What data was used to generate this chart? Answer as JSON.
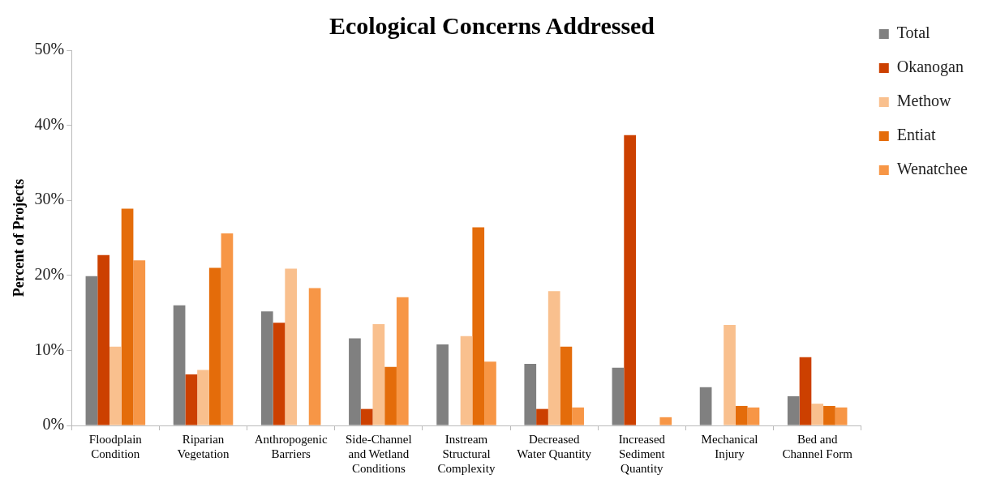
{
  "chart_data": {
    "type": "bar",
    "title": "Ecological Concerns Addressed",
    "ylabel": "Percent of Projects",
    "categories": [
      "Floodplain Condition",
      "Riparian Vegetation",
      "Anthropogenic Barriers",
      "Side-Channel and Wetland Conditions",
      "Instream Structural Complexity",
      "Decreased Water Quantity",
      "Increased Sediment Quantity",
      "Mechanical Injury",
      "Bed and Channel Form"
    ],
    "series": [
      {
        "name": "Total",
        "color": "#808080",
        "values": [
          19.9,
          16.0,
          15.2,
          11.6,
          10.8,
          8.2,
          7.7,
          5.1,
          3.9
        ]
      },
      {
        "name": "Okanogan",
        "color": "#cc4000",
        "values": [
          22.7,
          6.8,
          13.7,
          2.2,
          0,
          2.2,
          38.7,
          0,
          9.1
        ]
      },
      {
        "name": "Methow",
        "color": "#f9c08e",
        "values": [
          10.5,
          7.4,
          20.9,
          13.5,
          11.9,
          17.9,
          0,
          13.4,
          2.9
        ]
      },
      {
        "name": "Entiat",
        "color": "#e46c0a",
        "values": [
          28.9,
          21.0,
          0,
          7.8,
          26.4,
          10.5,
          0,
          2.6,
          2.6
        ]
      },
      {
        "name": "Wenatchee",
        "color": "#f79646",
        "values": [
          22.0,
          25.6,
          18.3,
          17.1,
          8.5,
          2.4,
          1.1,
          2.4,
          2.4
        ]
      }
    ],
    "ylim": [
      0,
      50
    ],
    "yticks": [
      {
        "value": 0,
        "label": "0%"
      },
      {
        "value": 10,
        "label": "10%"
      },
      {
        "value": 20,
        "label": "20%"
      },
      {
        "value": 30,
        "label": "30%"
      },
      {
        "value": 40,
        "label": "40%"
      },
      {
        "value": 50,
        "label": "50%"
      }
    ],
    "grid": false,
    "legend": "top right"
  }
}
